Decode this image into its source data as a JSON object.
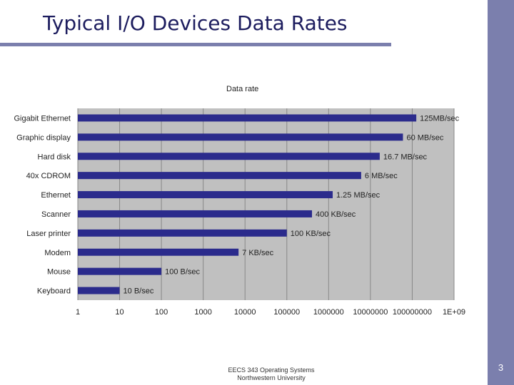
{
  "slide": {
    "title": "Typical I/O Devices Data Rates",
    "footer_line1": "EECS 343 Operating Systems",
    "footer_line2": "Northwestern University",
    "page_number": "3"
  },
  "colors": {
    "sidebar": "#7b7fad",
    "bar": "#2b2b8c",
    "plot_bg": "#c0c0c0",
    "title": "#1c1c5e"
  },
  "chart_data": {
    "type": "bar",
    "orientation": "horizontal",
    "title": "Data rate",
    "xscale": "log",
    "xlim": [
      1,
      1000000000
    ],
    "x_tick_labels": [
      "1",
      "10",
      "100",
      "1000",
      "10000",
      "100000",
      "1000000",
      "10000000",
      "100000000",
      "1E+09"
    ],
    "categories": [
      "Gigabit Ethernet",
      "Graphic display",
      "Hard disk",
      "40x CDROM",
      "Ethernet",
      "Scanner",
      "Laser printer",
      "Modem",
      "Mouse",
      "Keyboard"
    ],
    "values": [
      125000000,
      60000000,
      16700000,
      6000000,
      1250000,
      400000,
      100000,
      7000,
      100,
      10
    ],
    "data_labels": [
      "125MB/sec",
      "60 MB/sec",
      "16.7 MB/sec",
      "6 MB/sec",
      "1.25 MB/sec",
      "400 KB/sec",
      "100 KB/sec",
      "7 KB/sec",
      "100 B/sec",
      "10 B/sec"
    ],
    "grid": true
  }
}
